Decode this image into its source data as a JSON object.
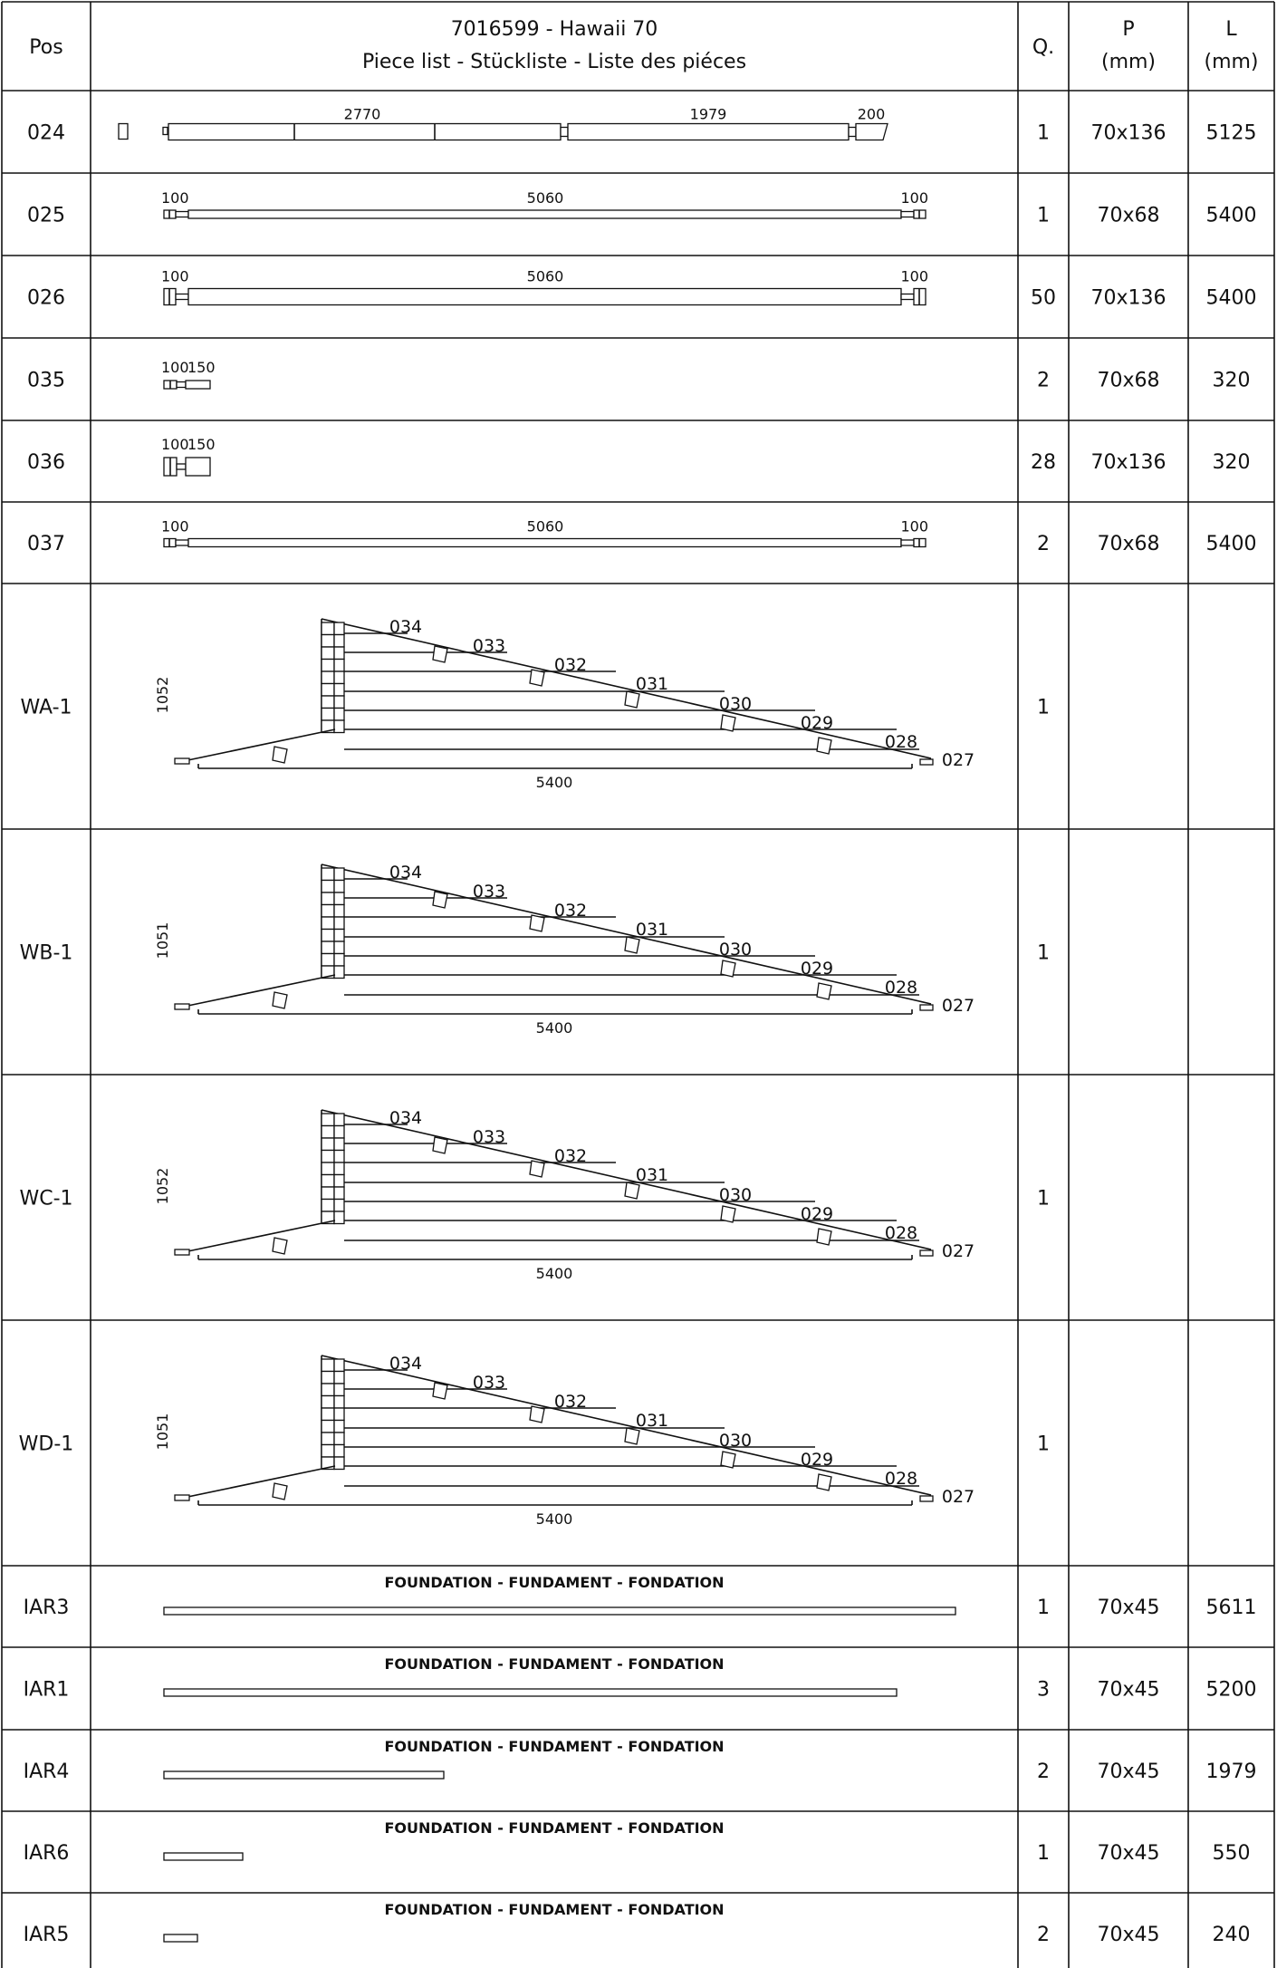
{
  "header": {
    "pos": "Pos",
    "title_line1": "7016599 - Hawaii 70",
    "title_line2": "Piece list - Stückliste - Liste des piéces",
    "qty": "Q.",
    "p_label": "P",
    "p_unit": "(mm)",
    "l_label": "L",
    "l_unit": "(mm)"
  },
  "rows": [
    {
      "pos": "024",
      "qty": "1",
      "p": "70x136",
      "l": "5125",
      "dims": [
        "2770",
        "1979",
        "200"
      ]
    },
    {
      "pos": "025",
      "qty": "1",
      "p": "70x68",
      "l": "5400",
      "dims": [
        "100",
        "5060",
        "100"
      ]
    },
    {
      "pos": "026",
      "qty": "50",
      "p": "70x136",
      "l": "5400",
      "dims": [
        "100",
        "5060",
        "100"
      ]
    },
    {
      "pos": "035",
      "qty": "2",
      "p": "70x68",
      "l": "320",
      "dims": [
        "100",
        "150"
      ]
    },
    {
      "pos": "036",
      "qty": "28",
      "p": "70x136",
      "l": "320",
      "dims": [
        "100",
        "150"
      ]
    },
    {
      "pos": "037",
      "qty": "2",
      "p": "70x68",
      "l": "5400",
      "dims": [
        "100",
        "5060",
        "100"
      ]
    }
  ],
  "walls": [
    {
      "pos": "WA-1",
      "qty": "1",
      "height": "1052",
      "length": "5400",
      "labels": [
        "034",
        "033",
        "032",
        "031",
        "030",
        "029",
        "028",
        "027"
      ]
    },
    {
      "pos": "WB-1",
      "qty": "1",
      "height": "1051",
      "length": "5400",
      "labels": [
        "034",
        "033",
        "032",
        "031",
        "030",
        "029",
        "028",
        "027"
      ]
    },
    {
      "pos": "WC-1",
      "qty": "1",
      "height": "1052",
      "length": "5400",
      "labels": [
        "034",
        "033",
        "032",
        "031",
        "030",
        "029",
        "028",
        "027"
      ]
    },
    {
      "pos": "WD-1",
      "qty": "1",
      "height": "1051",
      "length": "5400",
      "labels": [
        "034",
        "033",
        "032",
        "031",
        "030",
        "029",
        "028",
        "027"
      ]
    }
  ],
  "foundation": [
    {
      "pos": "IAR3",
      "qty": "1",
      "p": "70x45",
      "l": "5611",
      "caption": "FOUNDATION - FUNDAMENT - FONDATION"
    },
    {
      "pos": "IAR1",
      "qty": "3",
      "p": "70x45",
      "l": "5200",
      "caption": "FOUNDATION - FUNDAMENT - FONDATION"
    },
    {
      "pos": "IAR4",
      "qty": "2",
      "p": "70x45",
      "l": "1979",
      "caption": "FOUNDATION - FUNDAMENT - FONDATION"
    },
    {
      "pos": "IAR6",
      "qty": "1",
      "p": "70x45",
      "l": "550",
      "caption": "FOUNDATION - FUNDAMENT - FONDATION"
    },
    {
      "pos": "IAR5",
      "qty": "2",
      "p": "70x45",
      "l": "240",
      "caption": "FOUNDATION - FUNDAMENT - FONDATION"
    }
  ]
}
